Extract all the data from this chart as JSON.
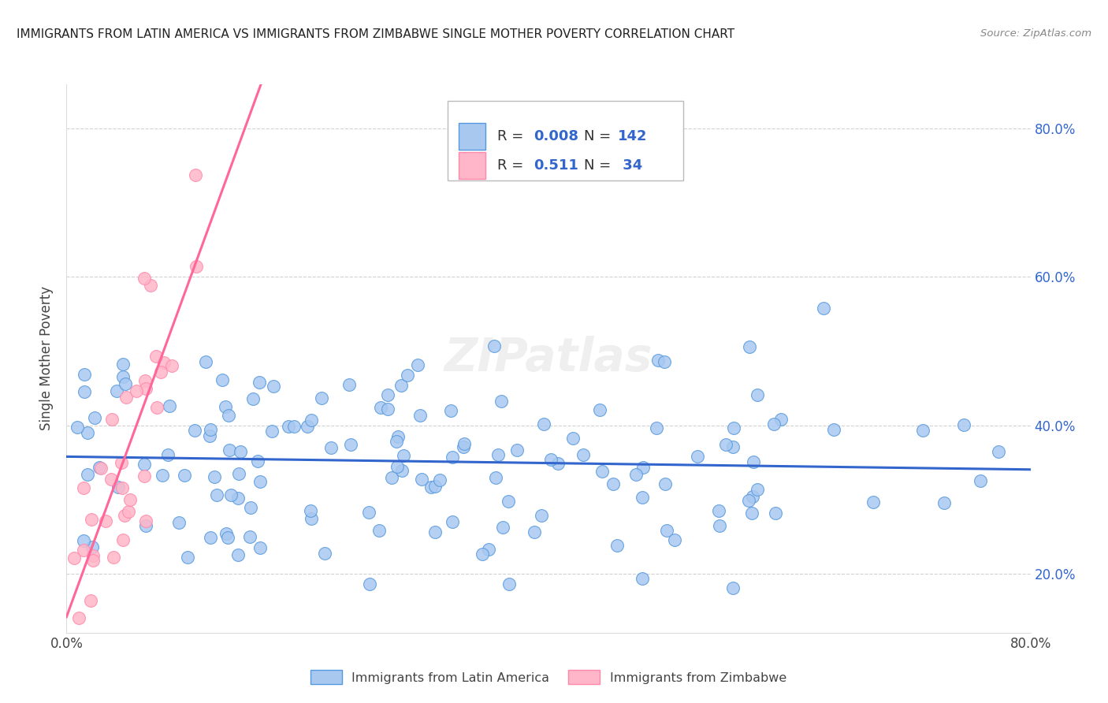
{
  "title": "IMMIGRANTS FROM LATIN AMERICA VS IMMIGRANTS FROM ZIMBABWE SINGLE MOTHER POVERTY CORRELATION CHART",
  "source": "Source: ZipAtlas.com",
  "ylabel": "Single Mother Poverty",
  "xlim": [
    0.0,
    0.8
  ],
  "ylim": [
    0.12,
    0.86
  ],
  "R_latin": 0.008,
  "N_latin": 142,
  "R_zimbabwe": 0.511,
  "N_zimbabwe": 34,
  "line_latin_color": "#3366CC",
  "line_zimbabwe_color": "#FF6699",
  "scatter_latin_color": "#A8C8F0",
  "scatter_zimbabwe_color": "#FFB6C8",
  "scatter_latin_edge": "#5599DD",
  "scatter_zimbabwe_edge": "#FF88AA",
  "legend_label_latin": "Immigrants from Latin America",
  "legend_label_zimbabwe": "Immigrants from Zimbabwe",
  "watermark": "ZIPatlas",
  "background_color": "#FFFFFF",
  "grid_color": "#CCCCCC",
  "ytick_vals": [
    0.2,
    0.4,
    0.6,
    0.8
  ],
  "ytick_labels": [
    "20.0%",
    "40.0%",
    "60.0%",
    "80.0%"
  ],
  "right_axis_color": "#3366CC",
  "title_color": "#222222",
  "source_color": "#888888"
}
